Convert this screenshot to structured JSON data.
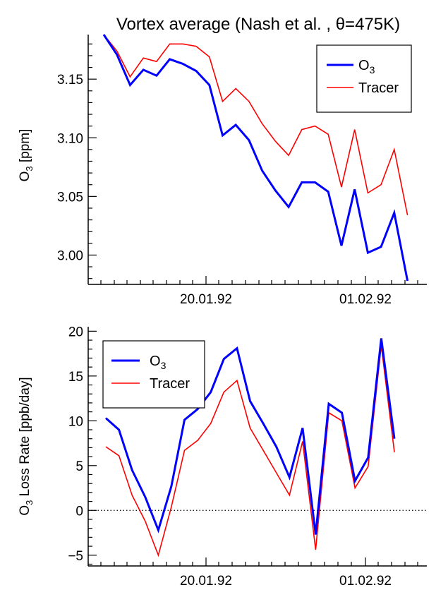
{
  "title": "Vortex average (Nash et al. , θ=475K)",
  "colors": {
    "o3": "#0000ff",
    "tracer": "#ff0000",
    "axis": "#000000"
  },
  "x_tick_labels": [
    "20.01.92",
    "01.02.92"
  ],
  "chart_data": [
    {
      "type": "line",
      "ylabel": "O3 [ppm]",
      "ylabel_parts": {
        "base": "O",
        "sub": "3",
        "rest": " [ppm]"
      },
      "ylim": [
        2.975,
        3.188
      ],
      "y_ticks": [
        3.0,
        3.05,
        3.1,
        3.15
      ],
      "y_tick_labels": [
        "3.00",
        "3.05",
        "3.10",
        "3.15"
      ],
      "legend_position": "top-right",
      "zero_line": false,
      "series": [
        {
          "name": "O3",
          "name_parts": {
            "base": "O",
            "sub": "3"
          },
          "color": "#0000ff",
          "values": [
            3.188,
            3.171,
            3.145,
            3.158,
            3.153,
            3.167,
            3.163,
            3.157,
            3.145,
            3.102,
            3.111,
            3.098,
            3.072,
            3.055,
            3.041,
            3.062,
            3.062,
            3.054,
            3.008,
            3.056,
            3.002,
            3.007,
            3.036,
            2.978
          ]
        },
        {
          "name": "Tracer",
          "name_parts": {
            "base": "Tracer",
            "sub": ""
          },
          "color": "#ff0000",
          "values": [
            3.188,
            3.174,
            3.152,
            3.168,
            3.165,
            3.18,
            3.18,
            3.178,
            3.169,
            3.131,
            3.142,
            3.131,
            3.112,
            3.097,
            3.085,
            3.107,
            3.11,
            3.103,
            3.058,
            3.107,
            3.053,
            3.06,
            3.09,
            3.034
          ]
        }
      ]
    },
    {
      "type": "line",
      "ylabel": "O3 Loss Rate [ppb/day]",
      "ylabel_parts": {
        "base": "O",
        "sub": "3",
        "rest": " Loss Rate [ppb/day]"
      },
      "ylim": [
        -6.2,
        20.5
      ],
      "y_ticks": [
        -5,
        0,
        5,
        10,
        15,
        20
      ],
      "y_tick_labels": [
        "−5",
        "0",
        "5",
        "10",
        "15",
        "20"
      ],
      "legend_position": "top-left",
      "zero_line": true,
      "series": [
        {
          "name": "O3",
          "name_parts": {
            "base": "O",
            "sub": "3"
          },
          "color": "#0000ff",
          "values": [
            10.3,
            9.0,
            4.5,
            1.5,
            -2.2,
            2.7,
            10.1,
            11.3,
            13.2,
            16.9,
            18.1,
            12.2,
            9.7,
            7.1,
            3.7,
            9.2,
            -2.7,
            11.9,
            10.9,
            3.3,
            5.9,
            19.2,
            8.0
          ]
        },
        {
          "name": "Tracer",
          "name_parts": {
            "base": "Tracer",
            "sub": ""
          },
          "color": "#ff0000",
          "values": [
            7.1,
            6.1,
            1.7,
            -1.2,
            -5.0,
            0.4,
            6.7,
            7.8,
            9.7,
            13.2,
            14.5,
            9.2,
            6.7,
            4.2,
            1.7,
            7.7,
            -4.4,
            10.9,
            10.0,
            2.5,
            4.9,
            18.4,
            6.5
          ]
        }
      ]
    }
  ]
}
